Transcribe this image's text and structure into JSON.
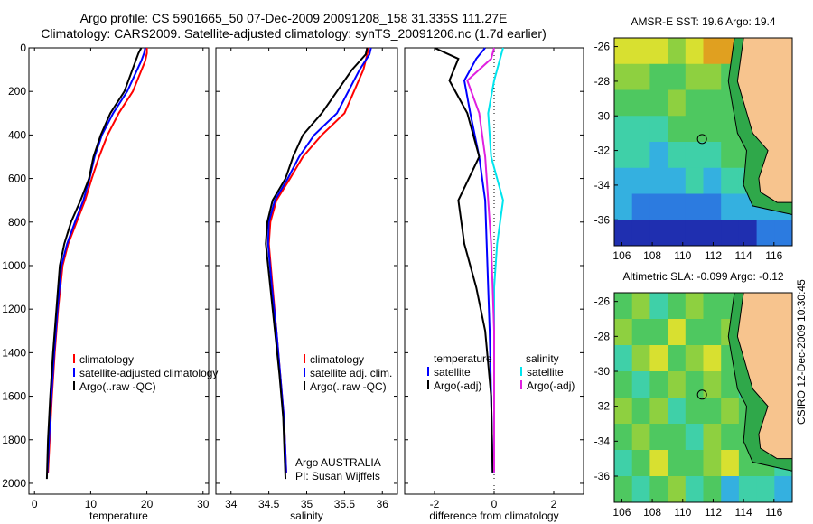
{
  "titles": {
    "line1": "Argo profile: CS 5901665_50 07-Dec-2009 20091208_158 31.335S 111.27E",
    "line2": "Climatology: CARS2009. Satellite-adjusted climatology: synTS_20091206.nc (1.7d earlier)"
  },
  "side_text": "CSIRO 12-Dec-2009 10:30:45",
  "chart_data": [
    {
      "type": "line",
      "xlabel": "temperature",
      "ylabel": "",
      "xlim": [
        -1,
        31
      ],
      "ylim": [
        2050,
        0
      ],
      "xticks": [
        0,
        10,
        20,
        30
      ],
      "yticks": [
        0,
        200,
        400,
        600,
        800,
        1000,
        1200,
        1400,
        1600,
        1800,
        2000
      ],
      "legend": [
        "climatology",
        "satellite-adjusted climatology",
        "Argo(..raw -QC)"
      ],
      "series": [
        {
          "name": "climatology",
          "color": "#ff0000",
          "x": [
            20,
            20,
            19.7,
            17.5,
            15,
            13,
            11.5,
            10.2,
            9,
            7.5,
            6,
            5,
            4.2,
            3.6,
            3.1,
            2.7,
            2.4
          ],
          "y": [
            0,
            25,
            60,
            200,
            300,
            400,
            500,
            600,
            700,
            800,
            900,
            1000,
            1200,
            1400,
            1600,
            1800,
            1950
          ]
        },
        {
          "name": "satellite-adjusted climatology",
          "color": "#0000ff",
          "x": [
            19.7,
            19.5,
            19,
            16.5,
            14,
            12,
            10.7,
            9.8,
            8.7,
            7.2,
            5.8,
            4.8,
            4.1,
            3.5,
            3,
            2.6,
            2.3
          ],
          "y": [
            0,
            25,
            60,
            200,
            300,
            400,
            500,
            600,
            700,
            800,
            900,
            1000,
            1200,
            1400,
            1600,
            1800,
            1950
          ]
        },
        {
          "name": "Argo(..raw -QC)",
          "color": "#000000",
          "x": [
            19,
            18.5,
            18,
            16,
            13.5,
            11.8,
            10.5,
            9.7,
            8.2,
            6.5,
            5.3,
            4.5,
            3.9,
            3.3,
            2.8,
            2.4,
            2.2
          ],
          "y": [
            0,
            25,
            60,
            200,
            300,
            400,
            500,
            600,
            700,
            800,
            900,
            1000,
            1200,
            1400,
            1600,
            1800,
            1980
          ]
        }
      ]
    },
    {
      "type": "line",
      "xlabel": "salinity",
      "ylabel": "",
      "xlim": [
        33.8,
        36.2
      ],
      "ylim": [
        2050,
        0
      ],
      "xticks": [
        34,
        34.5,
        35,
        35.5,
        36
      ],
      "legend": [
        "climatology",
        "satellite adj. clim.",
        "Argo(..raw -QC)"
      ],
      "annotation": [
        "Argo AUSTRALIA",
        "PI: Susan Wijffels"
      ],
      "series": [
        {
          "name": "climatology",
          "color": "#ff0000",
          "x": [
            35.82,
            35.8,
            35.75,
            35.5,
            35.2,
            34.95,
            34.78,
            34.6,
            34.52,
            34.5,
            34.55,
            34.6,
            34.65,
            34.7,
            34.73
          ],
          "y": [
            0,
            30,
            100,
            300,
            400,
            500,
            600,
            700,
            800,
            900,
            1100,
            1300,
            1500,
            1700,
            1950
          ]
        },
        {
          "name": "satellite adj. clim.",
          "color": "#0000ff",
          "x": [
            35.85,
            35.83,
            35.7,
            35.4,
            35.1,
            34.9,
            34.75,
            34.58,
            34.5,
            34.49,
            34.54,
            34.6,
            34.65,
            34.7,
            34.73
          ],
          "y": [
            0,
            30,
            100,
            300,
            400,
            500,
            600,
            700,
            800,
            900,
            1100,
            1300,
            1500,
            1700,
            1950
          ]
        },
        {
          "name": "Argo(..raw -QC)",
          "color": "#000000",
          "x": [
            35.8,
            35.78,
            35.6,
            35.2,
            34.95,
            34.82,
            34.72,
            34.55,
            34.48,
            34.46,
            34.52,
            34.58,
            34.64,
            34.69,
            34.72
          ],
          "y": [
            0,
            30,
            100,
            300,
            400,
            500,
            600,
            700,
            800,
            900,
            1100,
            1300,
            1500,
            1700,
            1980
          ]
        }
      ]
    },
    {
      "type": "line",
      "xlabel": "difference from climatology",
      "ylabel": "",
      "xlim": [
        -3,
        3
      ],
      "ylim": [
        2050,
        0
      ],
      "xticks": [
        -2,
        0,
        2
      ],
      "legend_temperature": {
        "title": "temperature",
        "items": [
          "satellite",
          "Argo(-adj)"
        ]
      },
      "legend_salinity": {
        "title": "salinity",
        "items": [
          "satellite",
          "Argo(-adj)"
        ]
      },
      "series": [
        {
          "name": "satellite",
          "color": "#0000ff",
          "x": [
            -0.3,
            -0.6,
            -1,
            -0.8,
            -0.5,
            -0.3,
            -0.25,
            -0.2,
            -0.15,
            -0.1,
            -0.05
          ],
          "y": [
            0,
            50,
            150,
            300,
            500,
            700,
            900,
            1100,
            1300,
            1600,
            1950
          ]
        },
        {
          "name": "Argo(-adj)",
          "color": "#000000",
          "x": [
            -2,
            -1.2,
            -1.5,
            -0.9,
            -0.5,
            -1.2,
            -1,
            -0.6,
            -0.3,
            -0.1,
            -0.05
          ],
          "y": [
            0,
            50,
            150,
            300,
            500,
            700,
            900,
            1100,
            1300,
            1600,
            1950
          ]
        },
        {
          "name": "satellite",
          "color": "#00e5ee",
          "x": [
            0.3,
            0.2,
            0,
            -0.2,
            -0.1,
            0.3,
            0.1,
            0,
            0,
            0,
            0
          ],
          "y": [
            0,
            50,
            150,
            300,
            500,
            700,
            900,
            1100,
            1300,
            1600,
            1950
          ]
        },
        {
          "name": "Argo(-adj)",
          "color": "#e020e0",
          "x": [
            0,
            -0.1,
            -0.9,
            -0.5,
            -0.3,
            -0.2,
            -0.1,
            -0.05,
            0,
            0,
            0
          ],
          "y": [
            0,
            50,
            150,
            300,
            500,
            700,
            900,
            1100,
            1300,
            1600,
            1950
          ]
        }
      ]
    },
    {
      "type": "heatmap",
      "title": "AMSR-E SST: 19.6 Argo: 19.4",
      "xlim": [
        105.5,
        117.2
      ],
      "ylim": [
        -37.5,
        -25.5
      ],
      "xticks": [
        106,
        108,
        110,
        112,
        114,
        116
      ],
      "yticks": [
        -26,
        -28,
        -30,
        -32,
        -34,
        -36
      ],
      "marker": {
        "lon": 111.27,
        "lat": -31.335
      },
      "palette": [
        "#1f2fb0",
        "#2c7be0",
        "#34b0e0",
        "#3fd0a8",
        "#4ec860",
        "#8ed040",
        "#d8e030",
        "#e0a020"
      ],
      "land_color": "#f7c48e",
      "rows": [
        [
          6,
          6,
          6,
          5,
          6,
          7,
          7,
          6,
          5,
          5
        ],
        [
          5,
          5,
          4,
          4,
          5,
          5,
          4,
          4,
          4,
          4
        ],
        [
          4,
          4,
          4,
          5,
          4,
          4,
          4,
          4,
          4,
          3
        ],
        [
          3,
          3,
          3,
          4,
          4,
          4,
          4,
          4,
          3,
          3
        ],
        [
          3,
          3,
          2,
          3,
          3,
          3,
          4,
          4,
          3,
          3
        ],
        [
          2,
          2,
          2,
          2,
          3,
          2,
          3,
          3,
          3,
          3
        ],
        [
          2,
          1,
          1,
          1,
          1,
          1,
          2,
          2,
          2,
          2
        ],
        [
          0,
          0,
          0,
          0,
          0,
          0,
          0,
          0,
          1,
          1
        ]
      ]
    },
    {
      "type": "heatmap",
      "title": "Altimetric SLA: -0.099 Argo: -0.12",
      "xlim": [
        105.5,
        117.2
      ],
      "ylim": [
        -37.5,
        -25.5
      ],
      "xticks": [
        106,
        108,
        110,
        112,
        114,
        116
      ],
      "yticks": [
        -26,
        -28,
        -30,
        -32,
        -34,
        -36
      ],
      "marker": {
        "lon": 111.27,
        "lat": -31.335
      },
      "palette": [
        "#2c7be0",
        "#34b0e0",
        "#3fd0a8",
        "#4ec860",
        "#8ed040",
        "#d8e030"
      ],
      "land_color": "#f7c48e",
      "rows": [
        [
          3,
          4,
          2,
          3,
          4,
          3,
          3,
          3,
          3,
          3
        ],
        [
          4,
          3,
          3,
          5,
          3,
          3,
          4,
          3,
          3,
          3
        ],
        [
          2,
          4,
          5,
          3,
          4,
          5,
          3,
          3,
          3,
          3
        ],
        [
          3,
          2,
          3,
          4,
          3,
          4,
          3,
          2,
          3,
          3
        ],
        [
          4,
          3,
          4,
          2,
          3,
          3,
          4,
          3,
          3,
          3
        ],
        [
          3,
          4,
          3,
          3,
          2,
          4,
          3,
          3,
          3,
          3
        ],
        [
          2,
          3,
          5,
          3,
          3,
          4,
          5,
          3,
          3,
          2
        ],
        [
          3,
          2,
          3,
          4,
          2,
          3,
          1,
          2,
          2,
          1
        ]
      ]
    }
  ]
}
